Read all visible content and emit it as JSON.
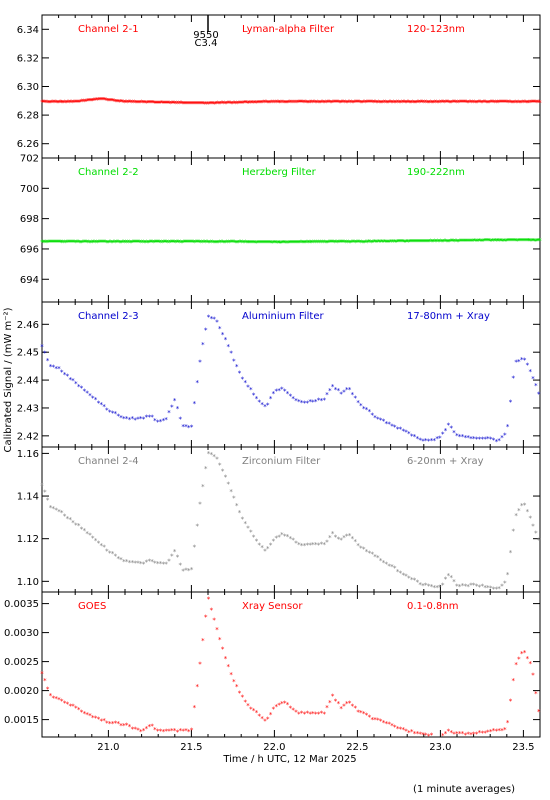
{
  "chart_data": {
    "type": "scatter",
    "x_range": [
      20.6,
      23.6
    ],
    "x_ticks": [
      "21.0",
      "21.5",
      "22.0",
      "22.5",
      "23.0",
      "23.5"
    ],
    "x_tick_values": [
      21.0,
      21.5,
      22.0,
      22.5,
      23.0,
      23.5
    ],
    "xlabel": "Time / h UTC, 12 Mar 2025",
    "ylabel": "Calibrated Signal / (mW m⁻²)",
    "footnote": "(1 minute averages)",
    "marker": "*",
    "flare": {
      "x": 21.6,
      "labels": [
        "9550",
        "C3.4"
      ]
    },
    "panels": [
      {
        "name": "Channel 2-1",
        "filter": "Lyman-alpha Filter",
        "band": "120-123nm",
        "color": "#ff0000",
        "ylim": [
          6.25,
          6.35
        ],
        "y_ticks": [
          "6.26",
          "6.28",
          "6.30",
          "6.32",
          "6.34"
        ],
        "y_tick_values": [
          6.26,
          6.28,
          6.3,
          6.32,
          6.34
        ],
        "style": "dense",
        "x": [
          20.6,
          20.8,
          20.95,
          21.1,
          21.6,
          22.0,
          22.5,
          23.0,
          23.3,
          23.6
        ],
        "y": [
          6.289,
          6.289,
          6.291,
          6.289,
          6.288,
          6.289,
          6.289,
          6.289,
          6.289,
          6.289
        ]
      },
      {
        "name": "Channel 2-2",
        "filter": "Herzberg Filter",
        "band": "190-222nm",
        "color": "#00dd00",
        "ylim": [
          692.5,
          702
        ],
        "y_ticks": [
          "694",
          "696",
          "698",
          "700",
          "702"
        ],
        "y_tick_values": [
          694,
          696,
          698,
          700,
          702
        ],
        "style": "dense",
        "x": [
          20.6,
          21.0,
          21.5,
          22.0,
          22.5,
          23.0,
          23.3,
          23.6
        ],
        "y": [
          696.45,
          696.45,
          696.45,
          696.42,
          696.45,
          696.5,
          696.55,
          696.55
        ]
      },
      {
        "name": "Channel 2-3",
        "filter": "Aluminium Filter",
        "band": "17-80nm + Xray",
        "color": "#0000cc",
        "ylim": [
          2.416,
          2.468
        ],
        "y_ticks": [
          "2.42",
          "2.43",
          "2.44",
          "2.45",
          "2.46"
        ],
        "y_tick_values": [
          2.42,
          2.43,
          2.44,
          2.45,
          2.46
        ],
        "style": "scatter",
        "x": [
          20.6,
          20.65,
          20.7,
          20.8,
          20.9,
          21.0,
          21.1,
          21.2,
          21.25,
          21.3,
          21.35,
          21.4,
          21.45,
          21.5,
          21.55,
          21.6,
          21.65,
          21.7,
          21.75,
          21.8,
          21.85,
          21.9,
          21.95,
          22.0,
          22.05,
          22.1,
          22.15,
          22.2,
          22.3,
          22.35,
          22.4,
          22.45,
          22.5,
          22.6,
          22.7,
          22.8,
          22.9,
          23.0,
          23.05,
          23.1,
          23.2,
          23.3,
          23.35,
          23.4,
          23.45,
          23.5,
          23.55,
          23.6
        ],
        "y": [
          2.452,
          2.445,
          2.444,
          2.439,
          2.434,
          2.429,
          2.426,
          2.426,
          2.427,
          2.425,
          2.426,
          2.433,
          2.423,
          2.423,
          2.446,
          2.463,
          2.461,
          2.455,
          2.448,
          2.441,
          2.437,
          2.433,
          2.43,
          2.436,
          2.437,
          2.434,
          2.432,
          2.432,
          2.433,
          2.438,
          2.435,
          2.437,
          2.432,
          2.427,
          2.424,
          2.421,
          2.418,
          2.419,
          2.424,
          2.42,
          2.419,
          2.419,
          2.418,
          2.421,
          2.446,
          2.448,
          2.442,
          2.434
        ]
      },
      {
        "name": "Channel 2-4",
        "filter": "Zirconium Filter",
        "band": "6-20nm + Xray",
        "color": "#808080",
        "ylim": [
          1.095,
          1.163
        ],
        "y_ticks": [
          "1.10",
          "1.12",
          "1.14",
          "1.16"
        ],
        "y_tick_values": [
          1.1,
          1.12,
          1.14,
          1.16
        ],
        "style": "scatter",
        "x": [
          20.6,
          20.65,
          20.7,
          20.8,
          20.9,
          21.0,
          21.1,
          21.2,
          21.25,
          21.3,
          21.35,
          21.4,
          21.45,
          21.5,
          21.55,
          21.6,
          21.65,
          21.7,
          21.75,
          21.8,
          21.85,
          21.9,
          21.95,
          22.0,
          22.05,
          22.1,
          22.15,
          22.2,
          22.3,
          22.35,
          22.4,
          22.45,
          22.5,
          22.6,
          22.7,
          22.8,
          22.9,
          23.0,
          23.05,
          23.1,
          23.2,
          23.3,
          23.35,
          23.4,
          23.45,
          23.5,
          23.55,
          23.6
        ],
        "y": [
          1.145,
          1.135,
          1.133,
          1.127,
          1.121,
          1.114,
          1.109,
          1.108,
          1.11,
          1.108,
          1.108,
          1.114,
          1.105,
          1.105,
          1.135,
          1.16,
          1.158,
          1.15,
          1.14,
          1.13,
          1.124,
          1.118,
          1.114,
          1.12,
          1.122,
          1.12,
          1.117,
          1.117,
          1.117,
          1.122,
          1.119,
          1.122,
          1.117,
          1.112,
          1.107,
          1.102,
          1.098,
          1.097,
          1.103,
          1.098,
          1.098,
          1.097,
          1.096,
          1.1,
          1.13,
          1.137,
          1.128,
          1.118
        ]
      },
      {
        "name": "GOES",
        "filter": "Xray Sensor",
        "band": "0.1-0.8nm",
        "color": "#ff0000",
        "ylim": [
          0.0012,
          0.0037
        ],
        "y_ticks": [
          "0.0015",
          "0.0020",
          "0.0025",
          "0.0030",
          "0.0035"
        ],
        "y_tick_values": [
          0.0015,
          0.002,
          0.0025,
          0.003,
          0.0035
        ],
        "style": "scatter",
        "x": [
          20.6,
          20.65,
          20.7,
          20.8,
          20.9,
          21.0,
          21.1,
          21.2,
          21.25,
          21.3,
          21.35,
          21.4,
          21.45,
          21.5,
          21.55,
          21.6,
          21.65,
          21.7,
          21.75,
          21.8,
          21.85,
          21.9,
          21.95,
          22.0,
          22.05,
          22.1,
          22.15,
          22.2,
          22.3,
          22.35,
          22.4,
          22.45,
          22.5,
          22.6,
          22.7,
          22.8,
          22.9,
          23.0,
          23.05,
          23.1,
          23.2,
          23.3,
          23.35,
          23.4,
          23.45,
          23.5,
          23.55,
          23.6
        ],
        "y": [
          0.0023,
          0.0019,
          0.00185,
          0.0017,
          0.00155,
          0.00145,
          0.0014,
          0.0013,
          0.0014,
          0.0013,
          0.0013,
          0.0013,
          0.0013,
          0.0013,
          0.0024,
          0.0036,
          0.0031,
          0.0026,
          0.0022,
          0.0019,
          0.0017,
          0.0016,
          0.00145,
          0.0017,
          0.0018,
          0.0017,
          0.0016,
          0.0016,
          0.0016,
          0.0019,
          0.0017,
          0.0018,
          0.00165,
          0.0015,
          0.0014,
          0.0013,
          0.00125,
          0.0012,
          0.0013,
          0.00125,
          0.00125,
          0.0013,
          0.0013,
          0.00135,
          0.0024,
          0.0027,
          0.0024,
          0.0015
        ]
      }
    ]
  }
}
